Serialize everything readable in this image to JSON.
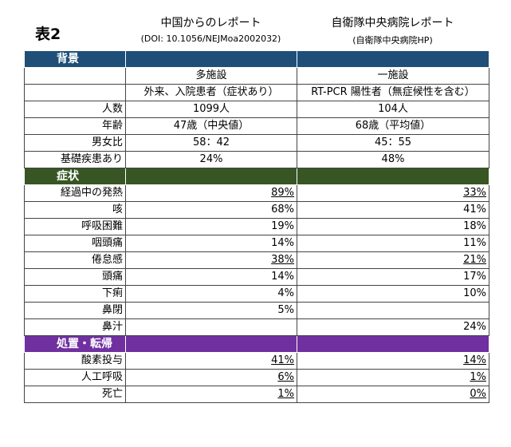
{
  "title": "表2",
  "columns": [
    {
      "name": "中国からのレポート",
      "source": "(DOI: 10.1056/NEJMoa2002032)"
    },
    {
      "name": "自衛隊中央病院レポート",
      "source": "(自衛隊中央病院HP)"
    }
  ],
  "sections": [
    {
      "title": "背景",
      "color": "#1f4e79",
      "align": "center",
      "rows": [
        {
          "a": "多施設",
          "b": "一施設"
        },
        {
          "a": "外来、入院患者（症状あり）",
          "b": "RT-PCR 陽性者（無症候性を含む）"
        },
        {
          "label": "人数",
          "a": "1099人",
          "b": "104人"
        },
        {
          "label": "年齢",
          "a": "47歳（中央値）",
          "b": "68歳（平均値）"
        },
        {
          "label": "男女比",
          "a": "58：42",
          "b": "45：55"
        },
        {
          "label": "基礎疾患あり",
          "a": "24%",
          "b": "48%"
        }
      ]
    },
    {
      "title": "症状",
      "color": "#375623",
      "align": "right",
      "rows": [
        {
          "label": "経過中の発熱",
          "a": "89%",
          "b": "33%",
          "underline": true
        },
        {
          "label": "咳",
          "a": "68%",
          "b": "41%"
        },
        {
          "label": "呼吸困難",
          "a": "19%",
          "b": "18%"
        },
        {
          "label": "咽頭痛",
          "a": "14%",
          "b": "11%"
        },
        {
          "label": "倦怠感",
          "a": "38%",
          "b": "21%",
          "underline": true
        },
        {
          "label": "頭痛",
          "a": "14%",
          "b": "17%"
        },
        {
          "label": "下痢",
          "a": "4%",
          "b": "10%"
        },
        {
          "label": "鼻閉",
          "a": "5%"
        },
        {
          "label": "鼻汁",
          "b": "24%"
        }
      ]
    },
    {
      "title": "処置・転帰",
      "color": "#7030a0",
      "align": "right",
      "rows": [
        {
          "label": "酸素投与",
          "a": "41%",
          "b": "14%",
          "underline": true
        },
        {
          "label": "人工呼吸",
          "a": "6%",
          "b": "1%",
          "underline": true
        },
        {
          "label": "死亡",
          "a": "1%",
          "b": "0%",
          "underline": true
        }
      ]
    }
  ]
}
